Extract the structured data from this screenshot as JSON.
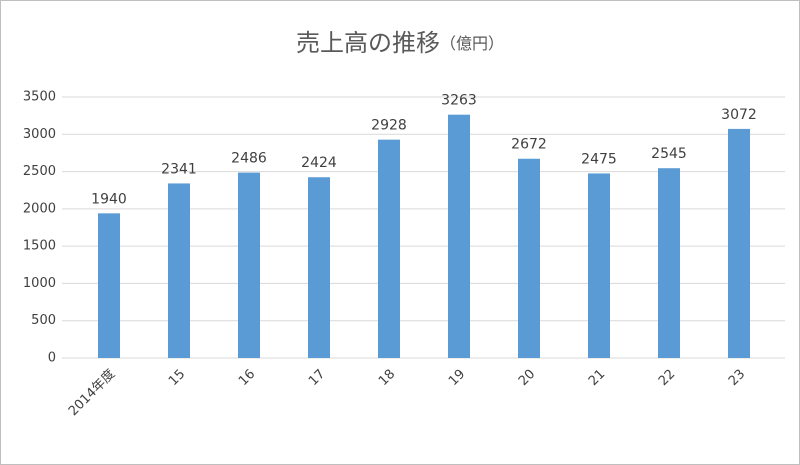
{
  "chart_data": {
    "type": "bar",
    "title": "売上高の推移",
    "subtitle": "（億円）",
    "categories": [
      "2014年度",
      "15",
      "16",
      "17",
      "18",
      "19",
      "20",
      "21",
      "22",
      "23"
    ],
    "values": [
      1940,
      2341,
      2486,
      2424,
      2928,
      3263,
      2672,
      2475,
      2545,
      3072
    ],
    "color": "#5b9bd5",
    "ylim": [
      0,
      3500
    ],
    "yticks": [
      0,
      500,
      1000,
      1500,
      2000,
      2500,
      3000,
      3500
    ],
    "grid": true
  }
}
